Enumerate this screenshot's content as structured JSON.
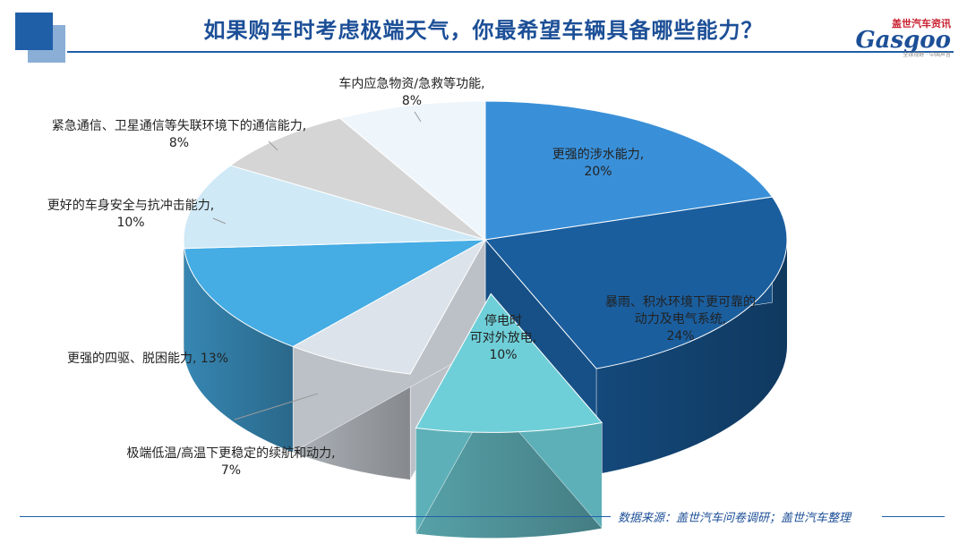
{
  "header": {
    "title": "如果购车时考虑极端天气，你最希望车辆具备哪些能力？",
    "logo_top": "盖世汽车资讯",
    "logo_main": "Gasgoo",
    "logo_sub": "全球视野 · 中国声音"
  },
  "footer": {
    "source": "数据来源：盖世汽车问卷调研；盖世汽车整理"
  },
  "chart_data": {
    "type": "pie",
    "title": "如果购车时考虑极端天气，你最希望车辆具备哪些能力？",
    "style": "3d-exploded",
    "slices": [
      {
        "label": "更强的涉水能力",
        "value": 20,
        "display": "20%",
        "color": "#3a90d8"
      },
      {
        "label": "暴雨、积水环境下更可靠的动力及电气系统",
        "value": 24,
        "display": "24%",
        "color": "#1a5e9e"
      },
      {
        "label": "停电时可对外放电",
        "value": 10,
        "display": "10%",
        "color": "#6fcfd8"
      },
      {
        "label": "极端低温/高温下更稳定的续航和动力",
        "value": 7,
        "display": "7%",
        "color": "#dde3ea"
      },
      {
        "label": "更强的四驱、脱困能力",
        "value": 13,
        "display": "13%",
        "color": "#45ace4"
      },
      {
        "label": "更好的车身安全与抗冲击能力",
        "value": 10,
        "display": "10%",
        "color": "#cfe9f6"
      },
      {
        "label": "紧急通信、卫星通信等失联环境下的通信能力",
        "value": 8,
        "display": "8%",
        "color": "#d5d5d5"
      },
      {
        "label": "车内应急物资/急救等功能",
        "value": 8,
        "display": "8%",
        "color": "#eef5fb"
      }
    ]
  }
}
